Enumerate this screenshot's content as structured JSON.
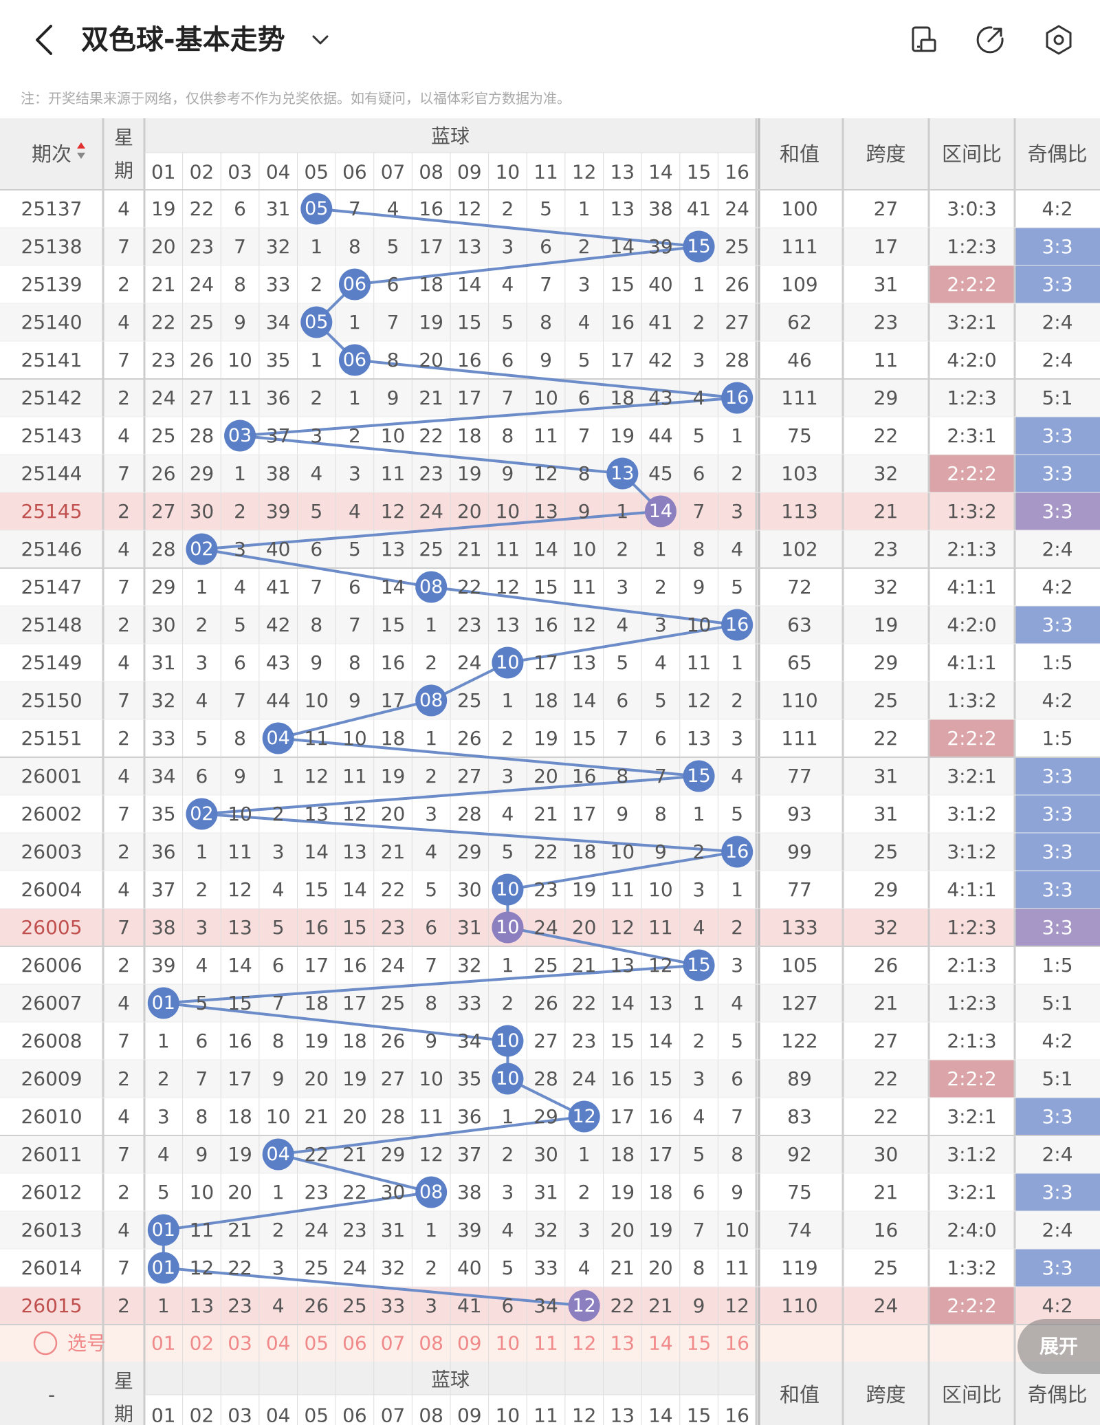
{
  "header": {
    "title": "双色球-基本走势",
    "notice": "注：开奖结果来源于网络，仅供参考不作为兑奖依据。如有疑问，以福体彩官方数据为准。",
    "icons": [
      "back-chevron-icon",
      "dropdown-chevron-icon",
      "phone-layout-icon",
      "share-icon",
      "settings-icon"
    ]
  },
  "table": {
    "col_period": "期次",
    "col_weekday": "星期",
    "group_blue": "蓝球",
    "col_sum": "和值",
    "col_span": "跨度",
    "col_zone": "区间比",
    "col_oddeven": "奇偶比",
    "blue_numbers": [
      "01",
      "02",
      "03",
      "04",
      "05",
      "06",
      "07",
      "08",
      "09",
      "10",
      "11",
      "12",
      "13",
      "14",
      "15",
      "16"
    ],
    "rows": [
      {
        "period": "25137",
        "week": "4",
        "cells": [
          19,
          22,
          6,
          31,
          "05",
          7,
          4,
          16,
          12,
          2,
          5,
          1,
          13,
          38,
          41,
          24
        ],
        "hit": 5,
        "sum": "100",
        "span": "27",
        "zone": "3:0:3",
        "oe": "4:2"
      },
      {
        "period": "25138",
        "week": "7",
        "cells": [
          20,
          23,
          7,
          32,
          1,
          8,
          5,
          17,
          13,
          3,
          6,
          2,
          14,
          39,
          "15",
          25
        ],
        "hit": 15,
        "sum": "111",
        "span": "17",
        "zone": "1:2:3",
        "oe": "3:3"
      },
      {
        "period": "25139",
        "week": "2",
        "cells": [
          21,
          24,
          8,
          33,
          2,
          "06",
          6,
          18,
          14,
          4,
          7,
          3,
          15,
          40,
          1,
          26
        ],
        "hit": 6,
        "sum": "109",
        "span": "31",
        "zone": "2:2:2",
        "oe": "3:3"
      },
      {
        "period": "25140",
        "week": "4",
        "cells": [
          22,
          25,
          9,
          34,
          "05",
          1,
          7,
          19,
          15,
          5,
          8,
          4,
          16,
          41,
          2,
          27
        ],
        "hit": 5,
        "sum": "62",
        "span": "23",
        "zone": "3:2:1",
        "oe": "2:4"
      },
      {
        "period": "25141",
        "week": "7",
        "cells": [
          23,
          26,
          10,
          35,
          1,
          "06",
          8,
          20,
          16,
          6,
          9,
          5,
          17,
          42,
          3,
          28
        ],
        "hit": 6,
        "sum": "46",
        "span": "11",
        "zone": "4:2:0",
        "oe": "2:4"
      },
      {
        "period": "25142",
        "week": "2",
        "cells": [
          24,
          27,
          11,
          36,
          2,
          1,
          9,
          21,
          17,
          7,
          10,
          6,
          18,
          43,
          4,
          "16"
        ],
        "hit": 16,
        "sum": "111",
        "span": "29",
        "zone": "1:2:3",
        "oe": "5:1"
      },
      {
        "period": "25143",
        "week": "4",
        "cells": [
          25,
          28,
          "03",
          37,
          3,
          2,
          10,
          22,
          18,
          8,
          11,
          7,
          19,
          44,
          5,
          1
        ],
        "hit": 3,
        "sum": "75",
        "span": "22",
        "zone": "2:3:1",
        "oe": "3:3"
      },
      {
        "period": "25144",
        "week": "7",
        "cells": [
          26,
          29,
          1,
          38,
          4,
          3,
          11,
          23,
          19,
          9,
          12,
          8,
          "13",
          45,
          6,
          2
        ],
        "hit": 13,
        "sum": "103",
        "span": "32",
        "zone": "2:2:2",
        "oe": "3:3"
      },
      {
        "period": "25145",
        "week": "2",
        "cells": [
          27,
          30,
          2,
          39,
          5,
          4,
          12,
          24,
          20,
          10,
          13,
          9,
          1,
          "14",
          7,
          3
        ],
        "hit": 14,
        "sum": "113",
        "span": "21",
        "zone": "1:3:2",
        "oe": "3:3"
      },
      {
        "period": "25146",
        "week": "4",
        "cells": [
          28,
          "02",
          3,
          40,
          6,
          5,
          13,
          25,
          21,
          11,
          14,
          10,
          2,
          1,
          8,
          4
        ],
        "hit": 2,
        "sum": "102",
        "span": "23",
        "zone": "2:1:3",
        "oe": "2:4"
      },
      {
        "period": "25147",
        "week": "7",
        "cells": [
          29,
          1,
          4,
          41,
          7,
          6,
          14,
          "08",
          22,
          12,
          15,
          11,
          3,
          2,
          9,
          5
        ],
        "hit": 8,
        "sum": "72",
        "span": "32",
        "zone": "4:1:1",
        "oe": "4:2"
      },
      {
        "period": "25148",
        "week": "2",
        "cells": [
          30,
          2,
          5,
          42,
          8,
          7,
          15,
          1,
          23,
          13,
          16,
          12,
          4,
          3,
          10,
          "16"
        ],
        "hit": 16,
        "sum": "63",
        "span": "19",
        "zone": "4:2:0",
        "oe": "3:3"
      },
      {
        "period": "25149",
        "week": "4",
        "cells": [
          31,
          3,
          6,
          43,
          9,
          8,
          16,
          2,
          24,
          "10",
          17,
          13,
          5,
          4,
          11,
          1
        ],
        "hit": 10,
        "sum": "65",
        "span": "29",
        "zone": "4:1:1",
        "oe": "1:5"
      },
      {
        "period": "25150",
        "week": "7",
        "cells": [
          32,
          4,
          7,
          44,
          10,
          9,
          17,
          "08",
          25,
          1,
          18,
          14,
          6,
          5,
          12,
          2
        ],
        "hit": 8,
        "sum": "110",
        "span": "25",
        "zone": "1:3:2",
        "oe": "4:2"
      },
      {
        "period": "25151",
        "week": "2",
        "cells": [
          33,
          5,
          8,
          "04",
          11,
          10,
          18,
          1,
          26,
          2,
          19,
          15,
          7,
          6,
          13,
          3
        ],
        "hit": 4,
        "sum": "111",
        "span": "22",
        "zone": "2:2:2",
        "oe": "1:5"
      },
      {
        "period": "26001",
        "week": "4",
        "cells": [
          34,
          6,
          9,
          1,
          12,
          11,
          19,
          2,
          27,
          3,
          20,
          16,
          8,
          7,
          "15",
          4
        ],
        "hit": 15,
        "sum": "77",
        "span": "31",
        "zone": "3:2:1",
        "oe": "3:3"
      },
      {
        "period": "26002",
        "week": "7",
        "cells": [
          35,
          "02",
          10,
          2,
          13,
          12,
          20,
          3,
          28,
          4,
          21,
          17,
          9,
          8,
          1,
          5
        ],
        "hit": 2,
        "sum": "93",
        "span": "31",
        "zone": "3:1:2",
        "oe": "3:3"
      },
      {
        "period": "26003",
        "week": "2",
        "cells": [
          36,
          1,
          11,
          3,
          14,
          13,
          21,
          4,
          29,
          5,
          22,
          18,
          10,
          9,
          2,
          "16"
        ],
        "hit": 16,
        "sum": "99",
        "span": "25",
        "zone": "3:1:2",
        "oe": "3:3"
      },
      {
        "period": "26004",
        "week": "4",
        "cells": [
          37,
          2,
          12,
          4,
          15,
          14,
          22,
          5,
          30,
          "10",
          23,
          19,
          11,
          10,
          3,
          1
        ],
        "hit": 10,
        "sum": "77",
        "span": "29",
        "zone": "4:1:1",
        "oe": "3:3"
      },
      {
        "period": "26005",
        "week": "7",
        "cells": [
          38,
          3,
          13,
          5,
          16,
          15,
          23,
          6,
          31,
          "10",
          24,
          20,
          12,
          11,
          4,
          2
        ],
        "hit": 10,
        "sum": "133",
        "span": "32",
        "zone": "1:2:3",
        "oe": "3:3"
      },
      {
        "period": "26006",
        "week": "2",
        "cells": [
          39,
          4,
          14,
          6,
          17,
          16,
          24,
          7,
          32,
          1,
          25,
          21,
          13,
          12,
          "15",
          3
        ],
        "hit": 15,
        "sum": "105",
        "span": "26",
        "zone": "2:1:3",
        "oe": "1:5"
      },
      {
        "period": "26007",
        "week": "4",
        "cells": [
          "01",
          5,
          15,
          7,
          18,
          17,
          25,
          8,
          33,
          2,
          26,
          22,
          14,
          13,
          1,
          4
        ],
        "hit": 1,
        "sum": "127",
        "span": "21",
        "zone": "1:2:3",
        "oe": "5:1"
      },
      {
        "period": "26008",
        "week": "7",
        "cells": [
          1,
          6,
          16,
          8,
          19,
          18,
          26,
          9,
          34,
          "10",
          27,
          23,
          15,
          14,
          2,
          5
        ],
        "hit": 10,
        "sum": "122",
        "span": "27",
        "zone": "2:1:3",
        "oe": "4:2"
      },
      {
        "period": "26009",
        "week": "2",
        "cells": [
          2,
          7,
          17,
          9,
          20,
          19,
          27,
          10,
          35,
          "10",
          28,
          24,
          16,
          15,
          3,
          6
        ],
        "hit": 10,
        "sum": "89",
        "span": "22",
        "zone": "2:2:2",
        "oe": "5:1"
      },
      {
        "period": "26010",
        "week": "4",
        "cells": [
          3,
          8,
          18,
          10,
          21,
          20,
          28,
          11,
          36,
          1,
          29,
          "12",
          17,
          16,
          4,
          7
        ],
        "hit": 12,
        "sum": "83",
        "span": "22",
        "zone": "3:2:1",
        "oe": "3:3"
      },
      {
        "period": "26011",
        "week": "7",
        "cells": [
          4,
          9,
          19,
          "04",
          22,
          21,
          29,
          12,
          37,
          2,
          30,
          1,
          18,
          17,
          5,
          8
        ],
        "hit": 4,
        "sum": "92",
        "span": "30",
        "zone": "3:1:2",
        "oe": "2:4"
      },
      {
        "period": "26012",
        "week": "2",
        "cells": [
          5,
          10,
          20,
          1,
          23,
          22,
          30,
          "08",
          38,
          3,
          31,
          2,
          19,
          18,
          6,
          9
        ],
        "hit": 8,
        "sum": "75",
        "span": "21",
        "zone": "3:2:1",
        "oe": "3:3"
      },
      {
        "period": "26013",
        "week": "4",
        "cells": [
          "01",
          11,
          21,
          2,
          24,
          23,
          31,
          1,
          39,
          4,
          32,
          3,
          20,
          19,
          7,
          10
        ],
        "hit": 1,
        "sum": "74",
        "span": "16",
        "zone": "2:4:0",
        "oe": "2:4"
      },
      {
        "period": "26014",
        "week": "7",
        "cells": [
          "01",
          12,
          22,
          3,
          25,
          24,
          32,
          2,
          40,
          5,
          33,
          4,
          21,
          20,
          8,
          11
        ],
        "hit": 1,
        "sum": "119",
        "span": "25",
        "zone": "1:3:2",
        "oe": "3:3"
      },
      {
        "period": "26015",
        "week": "2",
        "cells": [
          1,
          13,
          23,
          4,
          26,
          25,
          33,
          3,
          41,
          6,
          34,
          "12",
          22,
          21,
          9,
          12
        ],
        "hit": 12,
        "sum": "110",
        "span": "24",
        "zone": "2:2:2",
        "oe": "4:2"
      }
    ],
    "select_label": "选号",
    "footer_period": "-",
    "expand_label": "展开"
  },
  "colors": {
    "ball": "#5b7fc7",
    "ball_pink_row": "#8c7fbf",
    "line": "#6b8cc8",
    "row_pink": "#f9dede",
    "row_gray": "#f6f6f6",
    "oe_blue": "#8ea3d6",
    "oe_purple": "#a697c6",
    "zone_pink": "#dba4a8",
    "select_red": "#f08a8a",
    "select_bg": "#fdf0ea"
  }
}
